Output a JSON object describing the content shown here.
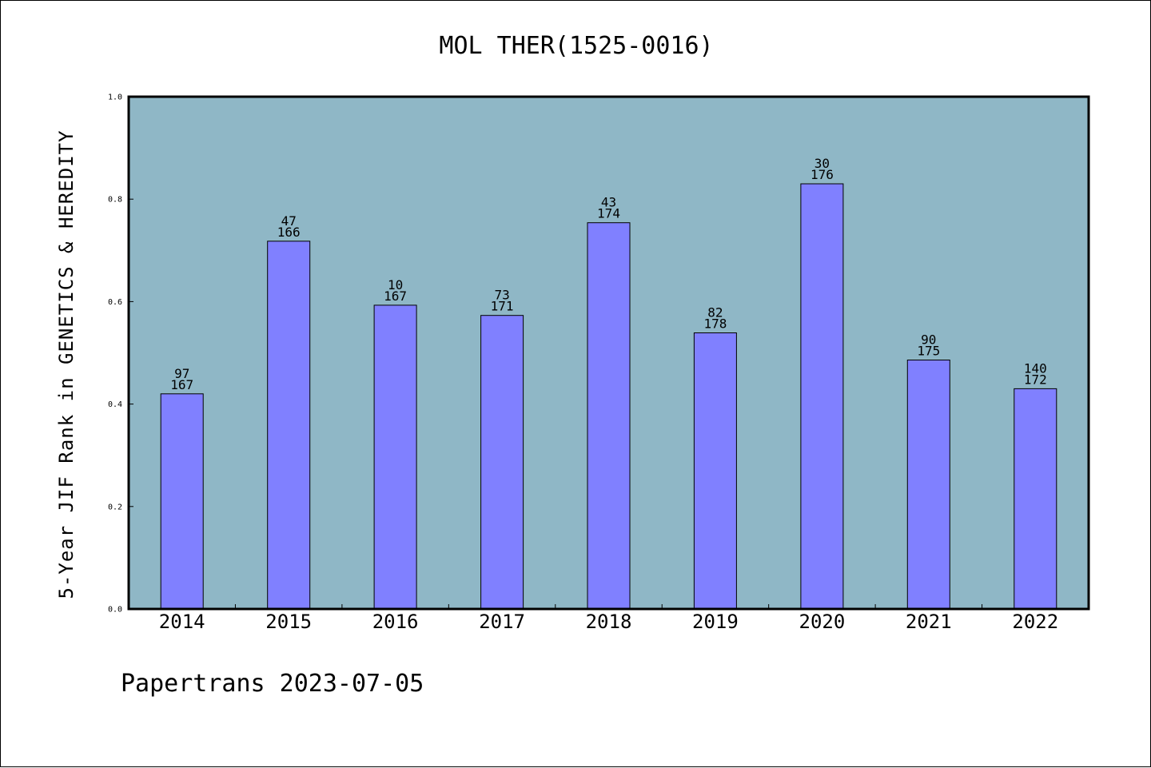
{
  "chart_data": {
    "type": "bar",
    "title": "MOL THER(1525-0016)",
    "ylabel": "5-Year JIF Rank in GENETICS & HEREDITY",
    "xlabel": "",
    "ylim": [
      0,
      1.0
    ],
    "yticks": [
      "0.0",
      "0.2",
      "0.4",
      "0.6",
      "0.8",
      "1.0"
    ],
    "categories": [
      "2014",
      "2015",
      "2016",
      "2017",
      "2018",
      "2019",
      "2020",
      "2021",
      "2022"
    ],
    "values": [
      0.42,
      0.718,
      0.593,
      0.573,
      0.754,
      0.539,
      0.83,
      0.486,
      0.43
    ],
    "rank_labels": [
      "97",
      "47",
      "10",
      "73",
      "43",
      "82",
      "30",
      "90",
      "140"
    ],
    "total_labels": [
      "167",
      "166",
      "167",
      "171",
      "174",
      "178",
      "176",
      "175",
      "172"
    ],
    "grid": false,
    "legend": "none",
    "colors": {
      "plot_bg": "#8fb7c6",
      "bar": "#8080ff",
      "bar_edge": "#000000"
    }
  },
  "footer": "Papertrans 2023-07-05"
}
